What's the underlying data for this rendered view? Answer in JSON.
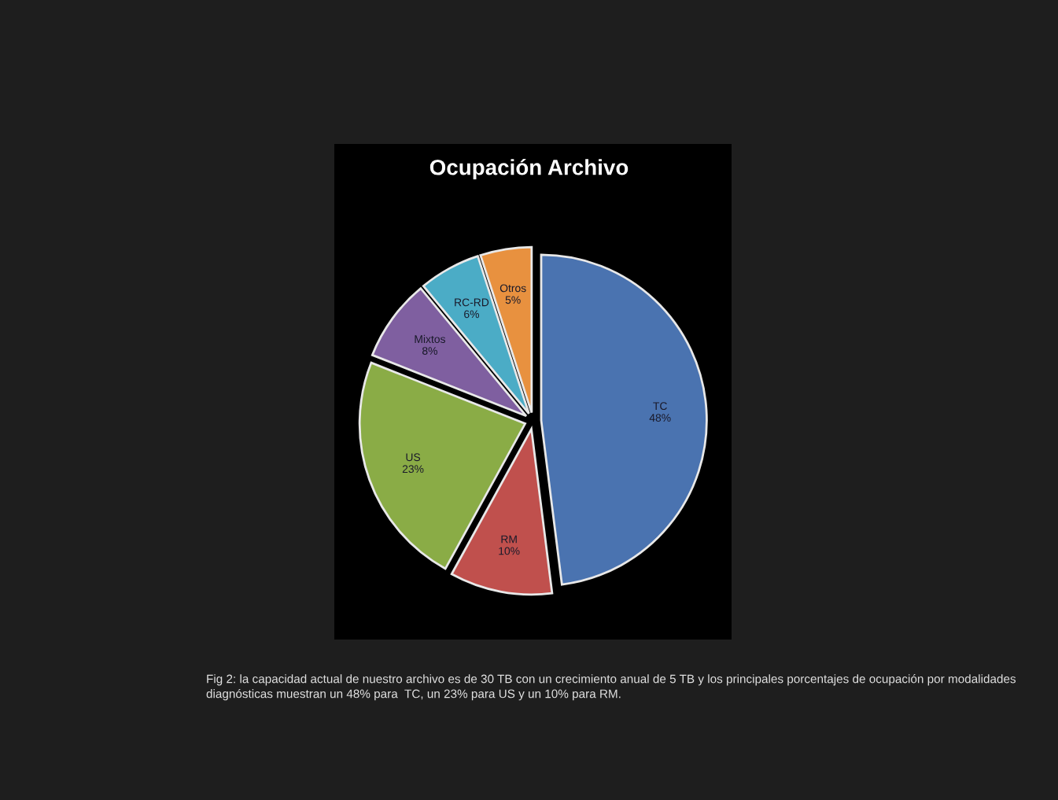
{
  "chart_data": {
    "type": "pie",
    "title": "Ocupación Archivo",
    "categories": [
      "TC",
      "RM",
      "US",
      "Mixtos",
      "RC-RD",
      "Otros"
    ],
    "values": [
      48,
      10,
      23,
      8,
      6,
      5
    ],
    "value_labels": [
      "48%",
      "10%",
      "23%",
      "8%",
      "6%",
      "5%"
    ],
    "colors": [
      "#4a73b0",
      "#c0504d",
      "#8aac46",
      "#7f5fa0",
      "#4bacc6",
      "#e8913f"
    ],
    "legend": false,
    "annotations": [
      "Fig 2: la capacidad actual de nuestro archivo es de 30 TB con un crecimiento anual de 5 TB y los principales porcentajes de ocupación por modalidades diagnósticas muestran un 48% para  TC, un 23% para US y un 10% para RM."
    ]
  }
}
